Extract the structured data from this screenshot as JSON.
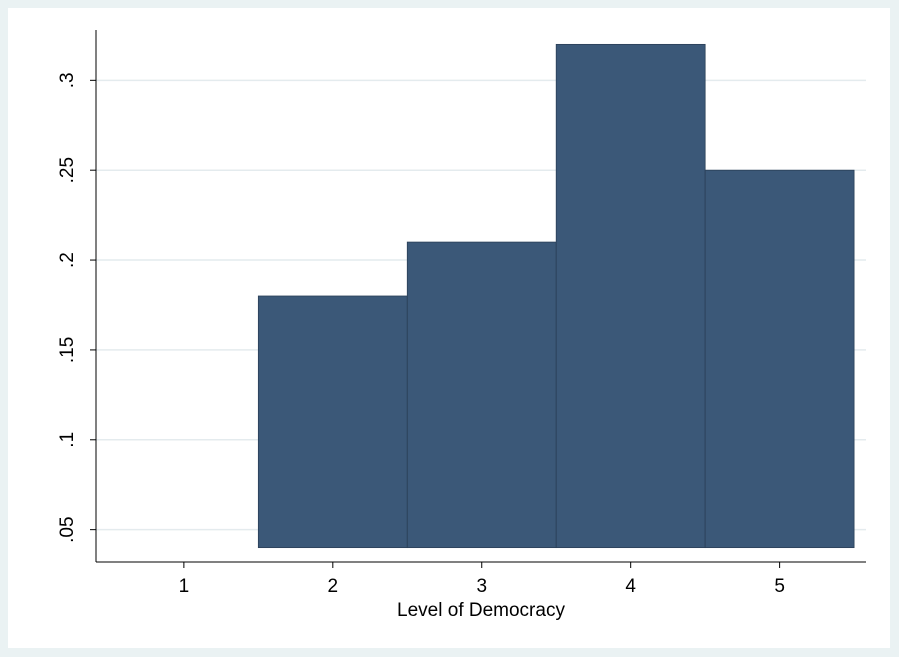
{
  "chart_data": {
    "type": "bar",
    "x_label": "Level of Democracy",
    "x": [
      2,
      3,
      4,
      5
    ],
    "values": [
      0.18,
      0.21,
      0.32,
      0.25
    ],
    "base": 0.04,
    "color": "#3b5878",
    "xlim": [
      0.41,
      5.58
    ],
    "xticks": [
      1,
      2,
      3,
      4,
      5
    ],
    "ylim": [
      0.032,
      0.328
    ],
    "yticks": [
      {
        "value": 0.05,
        "label": ".05"
      },
      {
        "value": 0.1,
        "label": ".1"
      },
      {
        "value": 0.15,
        "label": ".15"
      },
      {
        "value": 0.2,
        "label": ".2"
      },
      {
        "value": 0.25,
        "label": ".25"
      },
      {
        "value": 0.3,
        "label": ".3"
      }
    ],
    "grid": true
  }
}
